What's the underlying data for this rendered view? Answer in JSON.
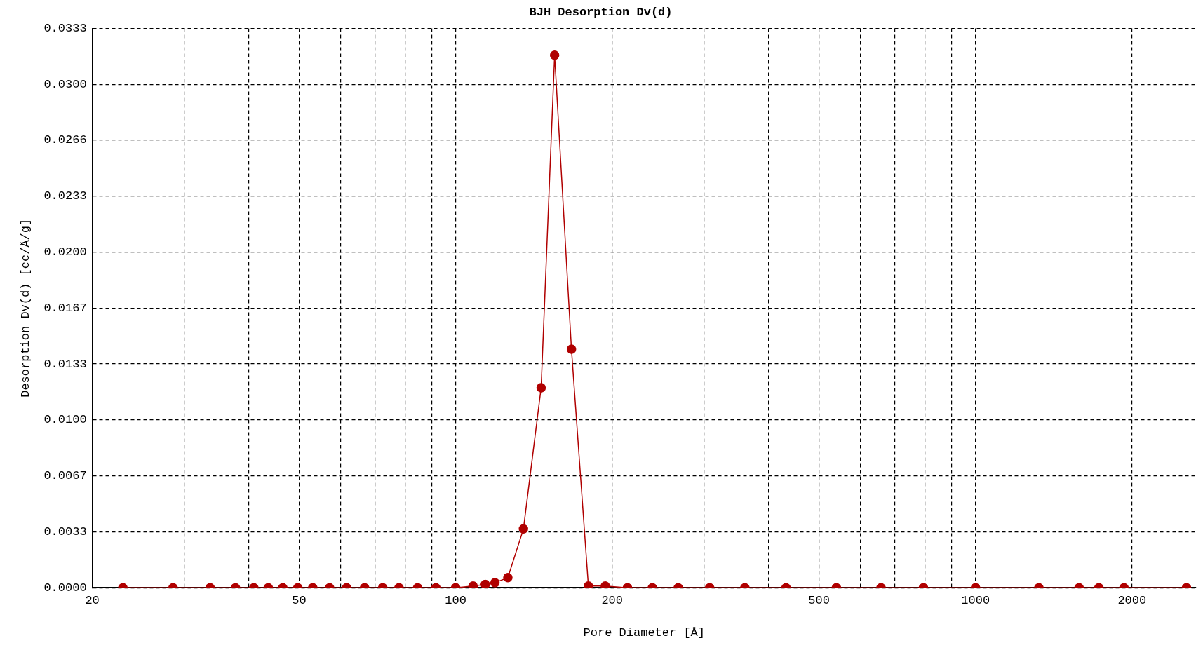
{
  "chart_data": {
    "type": "line",
    "title": "BJH Desorption Dv(d)",
    "xlabel": "Pore Diameter [Å]",
    "ylabel": "Desorption Dv(d) [cc/Å/g]",
    "log": "x",
    "grid": true,
    "legend": false,
    "marker": "circle",
    "line_style": "solid",
    "xlim": [
      20,
      2655
    ],
    "xticks": [
      20,
      {
        "value": 30,
        "label": null
      },
      {
        "value": 40,
        "label": null
      },
      50,
      {
        "value": 60,
        "label": null
      },
      {
        "value": 70,
        "label": null
      },
      {
        "value": 80,
        "label": null
      },
      {
        "value": 90,
        "label": null
      },
      100,
      200,
      {
        "value": 300,
        "label": null
      },
      {
        "value": 400,
        "label": null
      },
      500,
      {
        "value": 600,
        "label": null
      },
      {
        "value": 700,
        "label": null
      },
      {
        "value": 800,
        "label": null
      },
      {
        "value": 900,
        "label": null
      },
      1000,
      2000
    ],
    "ylim": [
      0,
      0.0333
    ],
    "yticks": [
      {
        "value": 0,
        "label": "0.0000"
      },
      {
        "value": 0.00333,
        "label": "0.0033"
      },
      {
        "value": 0.00666,
        "label": "0.0067"
      },
      {
        "value": 0.00999,
        "label": "0.0100"
      },
      {
        "value": 0.01332,
        "label": "0.0133"
      },
      {
        "value": 0.01665,
        "label": "0.0167"
      },
      {
        "value": 0.01998,
        "label": "0.0200"
      },
      {
        "value": 0.02331,
        "label": "0.0233"
      },
      {
        "value": 0.02664,
        "label": "0.0266"
      },
      {
        "value": 0.02997,
        "label": "0.0300"
      },
      {
        "value": 0.0333,
        "label": "0.0333"
      }
    ],
    "x": [
      22.9,
      28.6,
      33.7,
      37.7,
      40.9,
      43.6,
      46.5,
      49.7,
      53.1,
      57.2,
      61.7,
      66.8,
      72.4,
      77.8,
      84.5,
      91.6,
      100,
      108,
      114,
      119,
      126,
      135,
      146,
      155,
      167,
      180,
      194,
      214,
      239,
      268,
      308,
      360,
      432,
      540,
      658,
      794,
      1000,
      1324,
      1582,
      1727,
      1930,
      2546
    ],
    "series": [
      {
        "color": "#b00000",
        "values": [
          0,
          0,
          0,
          0,
          0,
          0,
          0,
          0,
          0,
          0,
          0,
          0,
          0,
          0,
          0,
          0,
          0,
          0.0001,
          0.0002,
          0.0003,
          0.0006,
          0.0035,
          0.0119,
          0.0317,
          0.0142,
          0.0001,
          0.0001,
          0,
          0,
          0,
          0,
          0,
          0,
          0,
          0,
          0,
          0,
          0,
          0,
          0,
          0,
          0
        ]
      }
    ]
  }
}
